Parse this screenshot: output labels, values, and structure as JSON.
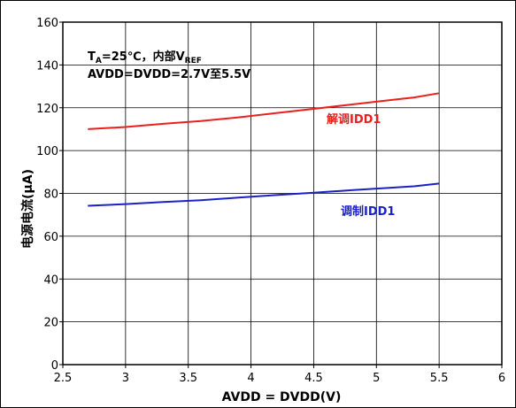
{
  "chart_data": {
    "type": "line",
    "xlabel": "AVDD = DVDD(V)",
    "ylabel": "电源电流(μA)",
    "xlim": [
      2.5,
      6
    ],
    "ylim": [
      0,
      160
    ],
    "xticks": [
      "2.5",
      "3",
      "3.5",
      "4",
      "4.5",
      "5",
      "5.5",
      "6"
    ],
    "yticks": [
      "0",
      "20",
      "40",
      "60",
      "80",
      "100",
      "120",
      "140",
      "160"
    ],
    "grid": true,
    "annotation": {
      "line1_T": "T",
      "line1_A": "A",
      "line1_mid": "=25℃，内部V",
      "line1_ref": "REF",
      "line2": "AVDD=DVDD=2.7V至5.5V"
    },
    "series": [
      {
        "name": "解调IDD1",
        "color": "#e8201e",
        "x": [
          2.7,
          3.0,
          3.3,
          3.6,
          3.9,
          4.2,
          4.5,
          4.8,
          5.1,
          5.3,
          5.5
        ],
        "y": [
          110,
          111,
          112.5,
          113.8,
          115.5,
          117.5,
          119.5,
          121.5,
          123.5,
          124.8,
          126.8
        ]
      },
      {
        "name": "调制IDD1",
        "color": "#1a21c8",
        "x": [
          2.7,
          3.0,
          3.3,
          3.6,
          3.9,
          4.2,
          4.5,
          4.8,
          5.1,
          5.3,
          5.5
        ],
        "y": [
          74.2,
          75.0,
          76.0,
          76.8,
          78.0,
          79.2,
          80.3,
          81.5,
          82.6,
          83.3,
          84.6
        ]
      }
    ]
  }
}
